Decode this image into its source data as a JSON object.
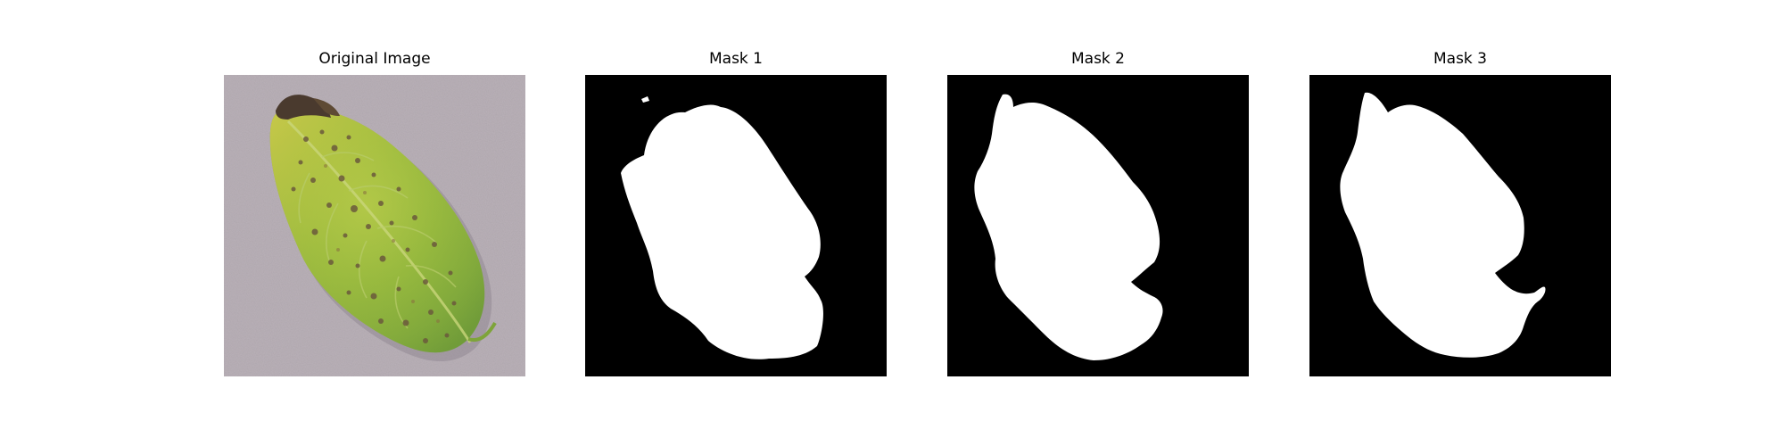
{
  "figure": {
    "panels": [
      {
        "title": "Original Image",
        "kind": "photo"
      },
      {
        "title": "Mask 1",
        "kind": "mask"
      },
      {
        "title": "Mask 2",
        "kind": "mask"
      },
      {
        "title": "Mask 3",
        "kind": "mask"
      }
    ]
  },
  "colors": {
    "background": "#ffffff",
    "mask_background": "#000000",
    "mask_foreground": "#ffffff",
    "photo_background": "#b7aeb5",
    "leaf_green": "#8cb53c",
    "leaf_yellow": "#c7cd4a",
    "leaf_spot": "#6b5a3c",
    "leaf_dead_tip": "#4a3a2e"
  }
}
